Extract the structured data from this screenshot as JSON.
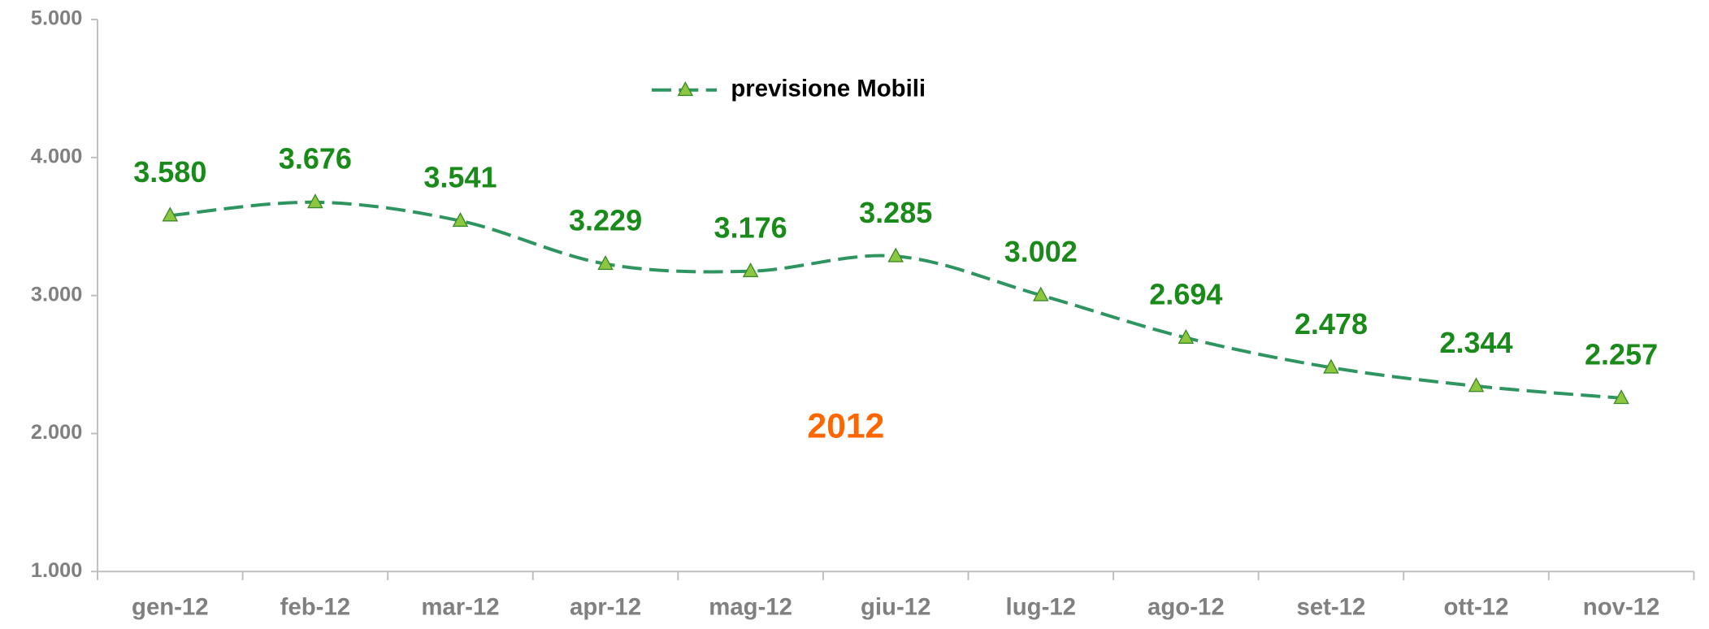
{
  "chart_data": {
    "type": "line",
    "categories": [
      "gen-12",
      "feb-12",
      "mar-12",
      "apr-12",
      "mag-12",
      "giu-12",
      "lug-12",
      "ago-12",
      "set-12",
      "ott-12",
      "nov-12"
    ],
    "series": [
      {
        "name": "previsione Mobili",
        "color": "#2e9560",
        "marker_color": "#8dc63f",
        "values": [
          3580,
          3676,
          3541,
          3229,
          3176,
          3285,
          3002,
          2694,
          2478,
          2344,
          2257
        ],
        "value_labels": [
          "3.580",
          "3.676",
          "3.541",
          "3.229",
          "3.176",
          "3.285",
          "3.002",
          "2.694",
          "2.478",
          "2.344",
          "2.257"
        ]
      }
    ],
    "ylim": [
      1000,
      5000
    ],
    "yticks": [
      {
        "value": 1000,
        "label": "1.000"
      },
      {
        "value": 2000,
        "label": "2.000"
      },
      {
        "value": 3000,
        "label": "3.000"
      },
      {
        "value": 4000,
        "label": "4.000"
      },
      {
        "value": 5000,
        "label": "5.000"
      }
    ],
    "annotation": "2012",
    "annotation_color": "#ff6600",
    "legend": "top"
  }
}
